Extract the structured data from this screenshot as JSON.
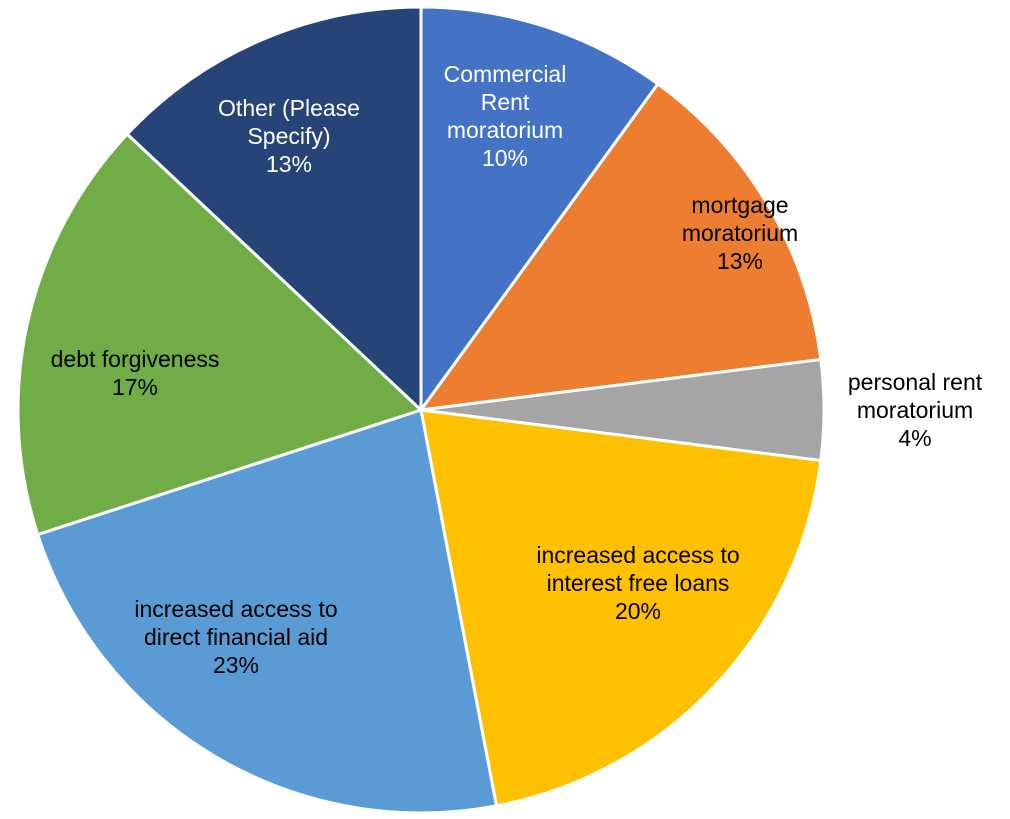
{
  "chart_data": {
    "type": "pie",
    "start_angle_deg": 0,
    "direction": "clockwise",
    "slices": [
      {
        "label_lines": [
          "Commercial",
          "Rent",
          "moratorium"
        ],
        "percent_label": "10%",
        "value": 10,
        "color": "#4472C4",
        "label_color": "#FFFFFF"
      },
      {
        "label_lines": [
          "mortgage",
          "moratorium"
        ],
        "percent_label": "13%",
        "value": 13,
        "color": "#ED7D31",
        "label_color": "#000000"
      },
      {
        "label_lines": [
          "personal rent",
          "moratorium"
        ],
        "percent_label": "4%",
        "value": 4,
        "color": "#A5A5A5",
        "label_color": "#000000"
      },
      {
        "label_lines": [
          "increased access to",
          "interest free loans"
        ],
        "percent_label": "20%",
        "value": 20,
        "color": "#FFC000",
        "label_color": "#000000"
      },
      {
        "label_lines": [
          "increased access to",
          "direct financial aid"
        ],
        "percent_label": "23%",
        "value": 23,
        "color": "#5B9BD5",
        "label_color": "#000000"
      },
      {
        "label_lines": [
          "debt forgiveness"
        ],
        "percent_label": "17%",
        "value": 17,
        "color": "#70AD47",
        "label_color": "#000000"
      },
      {
        "label_lines": [
          "Other (Please",
          "Specify)"
        ],
        "percent_label": "13%",
        "value": 13,
        "color": "#264478",
        "label_color": "#FFFFFF"
      }
    ]
  }
}
